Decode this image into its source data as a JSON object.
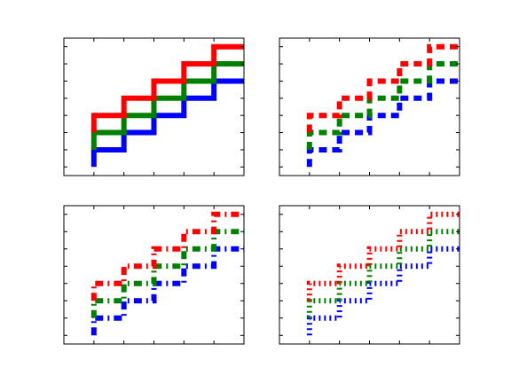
{
  "colors": {
    "axes": "#000000",
    "background": "#ffffff"
  },
  "chart_data": [
    {
      "type": "line",
      "drawstyle": "steps-pre",
      "linestyle": "solid",
      "grid": false,
      "xlim": [
        -1,
        5
      ],
      "ylim": [
        -0.5,
        7.5
      ],
      "x": [
        0,
        1,
        2,
        3,
        4,
        5
      ],
      "series": [
        {
          "color": "#0000ff",
          "values": [
            0,
            1,
            2,
            3,
            4,
            5
          ]
        },
        {
          "color": "#008000",
          "values": [
            1,
            2,
            3,
            4,
            5,
            6
          ]
        },
        {
          "color": "#ff0000",
          "values": [
            2,
            3,
            4,
            5,
            6,
            7
          ]
        }
      ]
    },
    {
      "type": "line",
      "drawstyle": "steps-pre",
      "linestyle": "dashed",
      "grid": false,
      "xlim": [
        -1,
        5
      ],
      "ylim": [
        -0.5,
        7.5
      ],
      "x": [
        0,
        1,
        2,
        3,
        4,
        5
      ],
      "series": [
        {
          "color": "#0000ff",
          "values": [
            0,
            1,
            2,
            3,
            4,
            5
          ]
        },
        {
          "color": "#008000",
          "values": [
            1,
            2,
            3,
            4,
            5,
            6
          ]
        },
        {
          "color": "#ff0000",
          "values": [
            2,
            3,
            4,
            5,
            6,
            7
          ]
        }
      ]
    },
    {
      "type": "line",
      "drawstyle": "steps-pre",
      "linestyle": "dashdot",
      "grid": false,
      "xlim": [
        -1,
        5
      ],
      "ylim": [
        -0.5,
        7.5
      ],
      "x": [
        0,
        1,
        2,
        3,
        4,
        5
      ],
      "series": [
        {
          "color": "#0000ff",
          "values": [
            0,
            1,
            2,
            3,
            4,
            5
          ]
        },
        {
          "color": "#008000",
          "values": [
            1,
            2,
            3,
            4,
            5,
            6
          ]
        },
        {
          "color": "#ff0000",
          "values": [
            2,
            3,
            4,
            5,
            6,
            7
          ]
        }
      ]
    },
    {
      "type": "line",
      "drawstyle": "steps-pre",
      "linestyle": "dotted",
      "grid": false,
      "xlim": [
        -1,
        5
      ],
      "ylim": [
        -0.5,
        7.5
      ],
      "x": [
        0,
        1,
        2,
        3,
        4,
        5
      ],
      "series": [
        {
          "color": "#0000ff",
          "values": [
            0,
            1,
            2,
            3,
            4,
            5
          ]
        },
        {
          "color": "#008000",
          "values": [
            1,
            2,
            3,
            4,
            5,
            6
          ]
        },
        {
          "color": "#ff0000",
          "values": [
            2,
            3,
            4,
            5,
            6,
            7
          ]
        }
      ]
    }
  ]
}
